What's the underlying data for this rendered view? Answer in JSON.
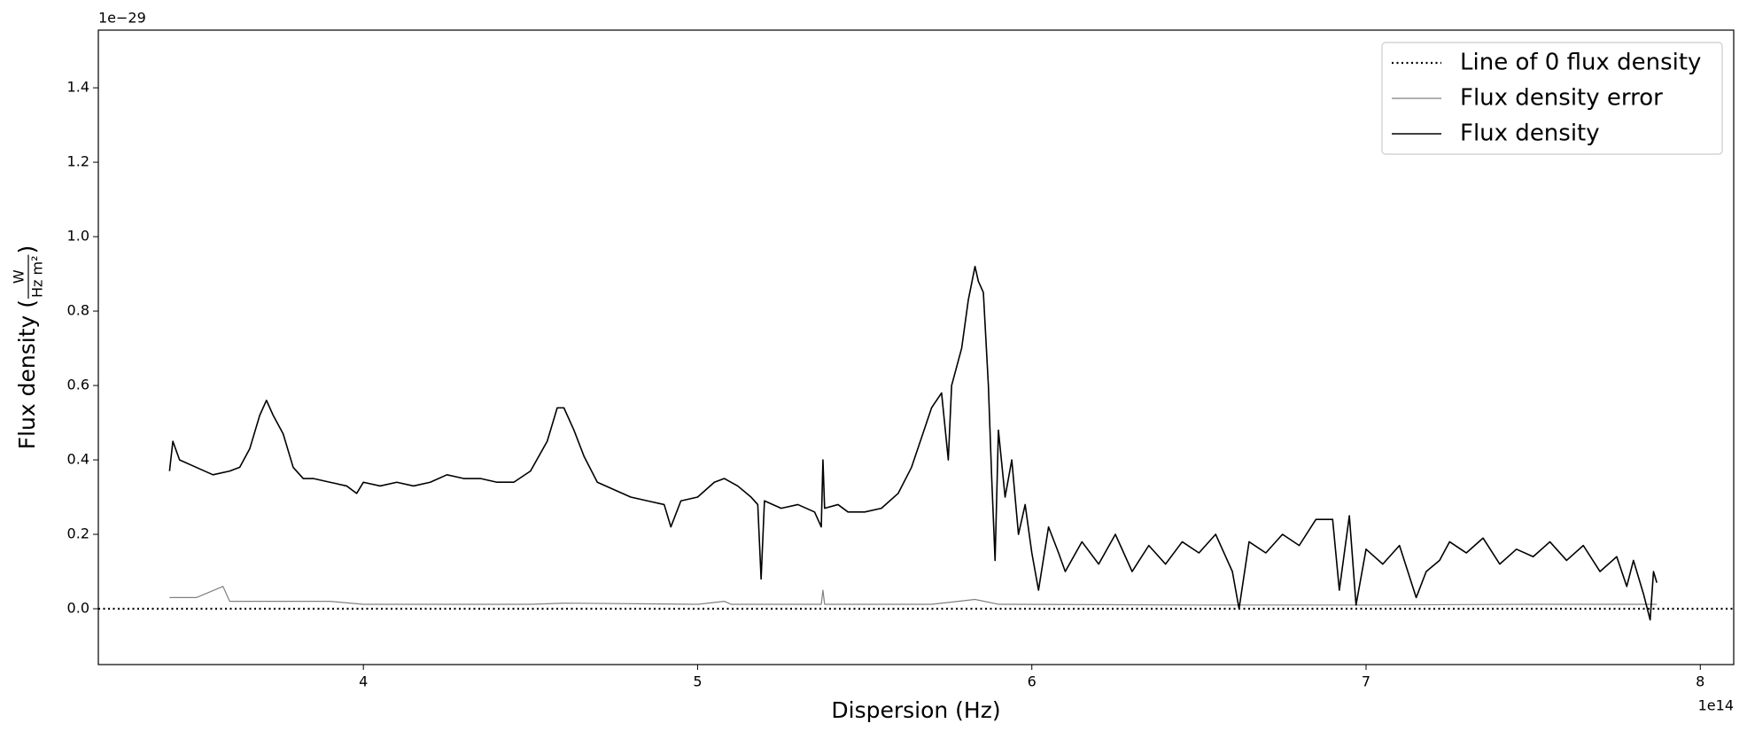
{
  "chart_data": {
    "type": "line",
    "xlabel": "Dispersion (Hz)",
    "ylabel": {
      "prefix": "Flux density (",
      "numerator": "W",
      "denominator": "Hz m²",
      "suffix": ")"
    },
    "x_offset_label": "1e14",
    "y_offset_label": "1e−29",
    "xlim": [
      3.207,
      8.1
    ],
    "ylim": [
      -0.15,
      1.555
    ],
    "xticks": [
      4,
      5,
      6,
      7,
      8
    ],
    "yticks": [
      {
        "value": 0,
        "label": "0.0"
      },
      {
        "value": 0.2,
        "label": "0.2"
      },
      {
        "value": 0.4,
        "label": "0.4"
      },
      {
        "value": 0.6,
        "label": "0.6"
      },
      {
        "value": 0.8,
        "label": "0.8"
      },
      {
        "value": 1.0,
        "label": "1.0"
      },
      {
        "value": 1.2,
        "label": "1.2"
      },
      {
        "value": 1.4,
        "label": "1.4"
      }
    ],
    "legend": "upper right",
    "hline": {
      "name": "Line of 0 flux density",
      "color": "#000000",
      "style": "dotted",
      "value": 0
    },
    "series": [
      {
        "name": "Flux density error",
        "color": "#808080",
        "width": 1.2,
        "x": [
          3.42,
          3.5,
          3.58,
          3.6,
          3.7,
          3.9,
          4.0,
          4.5,
          4.6,
          5.0,
          5.08,
          5.1,
          5.37,
          5.375,
          5.38,
          5.7,
          5.83,
          5.9,
          6.5,
          7.0,
          7.5,
          7.87
        ],
        "values": [
          0.03,
          0.03,
          0.06,
          0.02,
          0.02,
          0.02,
          0.012,
          0.012,
          0.015,
          0.012,
          0.02,
          0.012,
          0.012,
          0.05,
          0.012,
          0.012,
          0.025,
          0.012,
          0.01,
          0.01,
          0.012,
          0.012
        ]
      },
      {
        "name": "Flux density",
        "color": "#000000",
        "width": 1.6,
        "x": [
          3.42,
          3.43,
          3.45,
          3.5,
          3.55,
          3.6,
          3.63,
          3.66,
          3.69,
          3.71,
          3.73,
          3.76,
          3.79,
          3.82,
          3.85,
          3.9,
          3.95,
          3.98,
          4.0,
          4.05,
          4.1,
          4.15,
          4.2,
          4.25,
          4.3,
          4.35,
          4.4,
          4.45,
          4.5,
          4.55,
          4.58,
          4.6,
          4.63,
          4.66,
          4.7,
          4.75,
          4.8,
          4.85,
          4.9,
          4.92,
          4.95,
          5.0,
          5.05,
          5.08,
          5.12,
          5.16,
          5.18,
          5.19,
          5.2,
          5.25,
          5.3,
          5.35,
          5.37,
          5.375,
          5.38,
          5.42,
          5.45,
          5.5,
          5.55,
          5.6,
          5.64,
          5.67,
          5.7,
          5.73,
          5.75,
          5.76,
          5.79,
          5.81,
          5.83,
          5.84,
          5.855,
          5.87,
          5.88,
          5.89,
          5.9,
          5.92,
          5.94,
          5.96,
          5.98,
          6.0,
          6.02,
          6.05,
          6.08,
          6.1,
          6.15,
          6.2,
          6.25,
          6.3,
          6.35,
          6.4,
          6.45,
          6.5,
          6.55,
          6.6,
          6.62,
          6.65,
          6.7,
          6.75,
          6.8,
          6.85,
          6.9,
          6.92,
          6.95,
          6.97,
          7.0,
          7.05,
          7.1,
          7.15,
          7.18,
          7.22,
          7.25,
          7.3,
          7.35,
          7.4,
          7.45,
          7.5,
          7.55,
          7.6,
          7.65,
          7.7,
          7.75,
          7.78,
          7.8,
          7.83,
          7.85,
          7.86,
          7.87
        ],
        "values": [
          0.37,
          0.45,
          0.4,
          0.38,
          0.36,
          0.37,
          0.38,
          0.43,
          0.52,
          0.56,
          0.52,
          0.47,
          0.38,
          0.35,
          0.35,
          0.34,
          0.33,
          0.31,
          0.34,
          0.33,
          0.34,
          0.33,
          0.34,
          0.36,
          0.35,
          0.35,
          0.34,
          0.34,
          0.37,
          0.45,
          0.54,
          0.54,
          0.48,
          0.41,
          0.34,
          0.32,
          0.3,
          0.29,
          0.28,
          0.22,
          0.29,
          0.3,
          0.34,
          0.35,
          0.33,
          0.3,
          0.28,
          0.08,
          0.29,
          0.27,
          0.28,
          0.26,
          0.22,
          0.4,
          0.27,
          0.28,
          0.26,
          0.26,
          0.27,
          0.31,
          0.38,
          0.46,
          0.54,
          0.58,
          0.4,
          0.6,
          0.7,
          0.83,
          0.92,
          0.88,
          0.85,
          0.6,
          0.35,
          0.13,
          0.48,
          0.3,
          0.4,
          0.2,
          0.28,
          0.15,
          0.05,
          0.22,
          0.15,
          0.1,
          0.18,
          0.12,
          0.2,
          0.1,
          0.17,
          0.12,
          0.18,
          0.15,
          0.2,
          0.1,
          0.0,
          0.18,
          0.15,
          0.2,
          0.17,
          0.24,
          0.24,
          0.05,
          0.25,
          0.01,
          0.16,
          0.12,
          0.17,
          0.03,
          0.1,
          0.13,
          0.18,
          0.15,
          0.19,
          0.12,
          0.16,
          0.14,
          0.18,
          0.13,
          0.17,
          0.1,
          0.14,
          0.06,
          0.13,
          0.04,
          -0.03,
          0.1,
          0.07
        ]
      }
    ]
  }
}
